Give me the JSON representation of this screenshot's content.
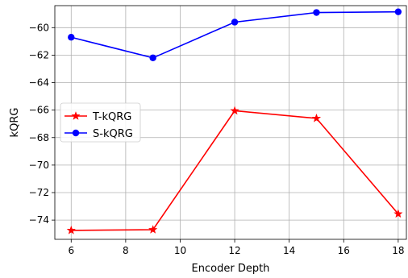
{
  "chart_data": {
    "type": "line",
    "title": "",
    "xlabel": "Encoder Depth",
    "ylabel": "kQRG",
    "xlim": [
      5.4,
      18.3
    ],
    "ylim": [
      -75.4,
      -58.4
    ],
    "xticks": [
      6,
      8,
      10,
      12,
      14,
      16,
      18
    ],
    "yticks": [
      -74,
      -72,
      -70,
      -68,
      -66,
      -64,
      -62,
      -60
    ],
    "x": [
      6,
      9,
      12,
      15,
      18
    ],
    "grid": true,
    "legend": "center-left",
    "series": [
      {
        "name": "T-kQRG",
        "color": "#ff0000",
        "marker": "star",
        "values": [
          -74.75,
          -74.7,
          -66.05,
          -66.6,
          -73.55
        ]
      },
      {
        "name": "S-kQRG",
        "color": "#0000ff",
        "marker": "circle",
        "values": [
          -60.7,
          -62.2,
          -59.6,
          -58.9,
          -58.85
        ]
      }
    ]
  }
}
